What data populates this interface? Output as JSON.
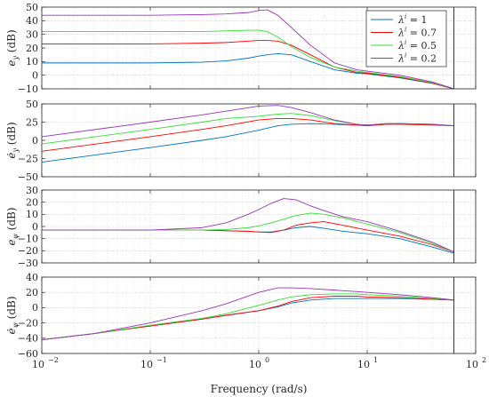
{
  "chart_data": {
    "type": "line",
    "xlabel": "Frequency (rad/s)",
    "xscale": "log",
    "xlim": [
      0.01,
      100
    ],
    "x_tick_labels": [
      "10",
      "10",
      "10",
      "10",
      "10"
    ],
    "x_tick_exponents": [
      "−2",
      "−1",
      "0",
      "1",
      "2"
    ],
    "grid": "dotted",
    "legend": {
      "placement": "top-right",
      "panel": 0,
      "labels": [
        "λ = 1",
        "λ = 0.7",
        "λ = 0.5",
        "λ = 0.2"
      ],
      "label_parts": [
        {
          "sym": "λ",
          "sup": "i",
          "rest": " = 1"
        },
        {
          "sym": "λ",
          "sup": "i",
          "rest": " = 0.7"
        },
        {
          "sym": "λ",
          "sup": "i",
          "rest": " = 0.5"
        },
        {
          "sym": "λ",
          "sup": "i",
          "rest": " = 0.2"
        }
      ]
    },
    "colors": [
      "#0072BD",
      "#ff0000",
      "#33dd33",
      "#9933bb"
    ],
    "vline_x": 63,
    "panels": [
      {
        "ylabel": "e_y (dB)",
        "ylabel_sym": "e",
        "ylabel_sub": "y",
        "ylabel_unit": " (dB)",
        "ylim": [
          -10,
          50
        ],
        "yticks": [
          -10,
          0,
          10,
          20,
          30,
          40,
          50
        ],
        "x": [
          0.01,
          0.1,
          0.3,
          0.5,
          0.8,
          1.0,
          1.2,
          1.5,
          2.0,
          3.0,
          5.0,
          8.0,
          10,
          20,
          40,
          63
        ],
        "series": [
          {
            "values": [
              9,
              9,
              9.5,
              10.5,
              12.5,
              14,
              15,
              15.8,
              15,
              10,
              4,
              1.5,
              1,
              -2,
              -6,
              -10
            ]
          },
          {
            "values": [
              23,
              23,
              23.5,
              24,
              25,
              25.5,
              25.5,
              25,
              22,
              15,
              6,
              2,
              1.5,
              -1.5,
              -6,
              -10
            ]
          },
          {
            "values": [
              32,
              32,
              32,
              32.5,
              33,
              33,
              32,
              28,
              21,
              13,
              6,
              3,
              2,
              -1,
              -5.5,
              -10
            ]
          },
          {
            "values": [
              44,
              44,
              44.5,
              45,
              46,
              47.5,
              48,
              44,
              35,
              22,
              9,
              4,
              3,
              0,
              -5,
              -10
            ]
          }
        ]
      },
      {
        "ylabel": "ė_y (dB)",
        "ylabel_sym": "ė",
        "ylabel_sub": "y",
        "ylabel_unit": " (dB)",
        "ylim": [
          -50,
          50
        ],
        "yticks": [
          -50,
          -25,
          0,
          25,
          50
        ],
        "x": [
          0.01,
          0.1,
          0.3,
          0.5,
          1.0,
          1.5,
          2.0,
          3.0,
          5.0,
          8.0,
          10,
          15,
          20,
          40,
          63
        ],
        "series": [
          {
            "values": [
              -30,
              -10,
              0,
              5,
              14,
              20,
              22,
              23,
              22,
              21,
              20,
              22,
              23,
              22,
              20
            ]
          },
          {
            "values": [
              -15,
              5,
              15,
              20,
              28,
              30,
              30,
              28,
              23,
              21,
              20,
              22,
              22,
              21,
              20
            ]
          },
          {
            "values": [
              -5,
              15,
              25,
              30,
              33,
              36,
              37,
              34,
              27,
              22,
              21,
              23,
              23,
              22,
              20
            ]
          },
          {
            "values": [
              5,
              25,
              35,
              40,
              47,
              48,
              45,
              38,
              28,
              22,
              21,
              23,
              23,
              22,
              20
            ]
          }
        ]
      },
      {
        "ylabel": "e_ψ (dB)",
        "ylabel_sym": "e",
        "ylabel_sub": "ψ",
        "ylabel_unit": " (dB)",
        "ylim": [
          -30,
          30
        ],
        "yticks": [
          -30,
          -20,
          -10,
          0,
          10,
          20,
          30
        ],
        "x": [
          0.01,
          0.1,
          0.3,
          0.5,
          0.8,
          1.0,
          1.3,
          1.7,
          2.2,
          3.0,
          4.0,
          6.0,
          10,
          20,
          40,
          63
        ],
        "series": [
          {
            "values": [
              -3,
              -3,
              -3,
              -3.5,
              -4,
              -4.5,
              -4.5,
              -3,
              -1,
              0,
              -1.5,
              -4,
              -6,
              -10,
              -17,
              -22
            ]
          },
          {
            "values": [
              -3,
              -3,
              -3,
              -3.5,
              -4,
              -4.5,
              -5,
              -3,
              1,
              3,
              4,
              1,
              -3,
              -8,
              -15,
              -21
            ]
          },
          {
            "values": [
              -3,
              -3,
              -3,
              -2.5,
              -1,
              0.5,
              3,
              6,
              9,
              11,
              10,
              7,
              2,
              -5,
              -14,
              -21
            ]
          },
          {
            "values": [
              -3,
              -3,
              -1,
              3,
              10,
              14,
              19,
              23,
              22,
              17,
              13,
              8,
              4,
              -4,
              -13,
              -21
            ]
          }
        ]
      },
      {
        "ylabel": "ė_ψ (dB)",
        "ylabel_sym": "ė",
        "ylabel_sub": "ψ",
        "ylabel_unit": " (dB)",
        "ylim": [
          -60,
          40
        ],
        "yticks": [
          -60,
          -40,
          -20,
          0,
          20,
          40
        ],
        "x": [
          0.01,
          0.03,
          0.1,
          0.3,
          0.5,
          1.0,
          1.5,
          2.0,
          3.0,
          5.0,
          8.0,
          10,
          20,
          40,
          63
        ],
        "series": [
          {
            "values": [
              -42,
              -34,
              -24,
              -15,
              -10,
              -4,
              1,
              6,
              10,
              12,
              12,
              12,
              12,
              11,
              10
            ]
          },
          {
            "values": [
              -42,
              -34,
              -24,
              -15,
              -10,
              -4,
              2,
              8,
              13,
              15,
              15,
              14,
              13,
              11,
              10
            ]
          },
          {
            "values": [
              -42,
              -34,
              -23,
              -14,
              -8,
              3,
              10,
              14,
              17,
              18,
              18,
              17,
              15,
              12,
              10
            ]
          },
          {
            "values": [
              -42,
              -34,
              -20,
              -4,
              5,
              20,
              26,
              26,
              25,
              23,
              21,
              20,
              17,
              13,
              10
            ]
          }
        ]
      }
    ]
  }
}
